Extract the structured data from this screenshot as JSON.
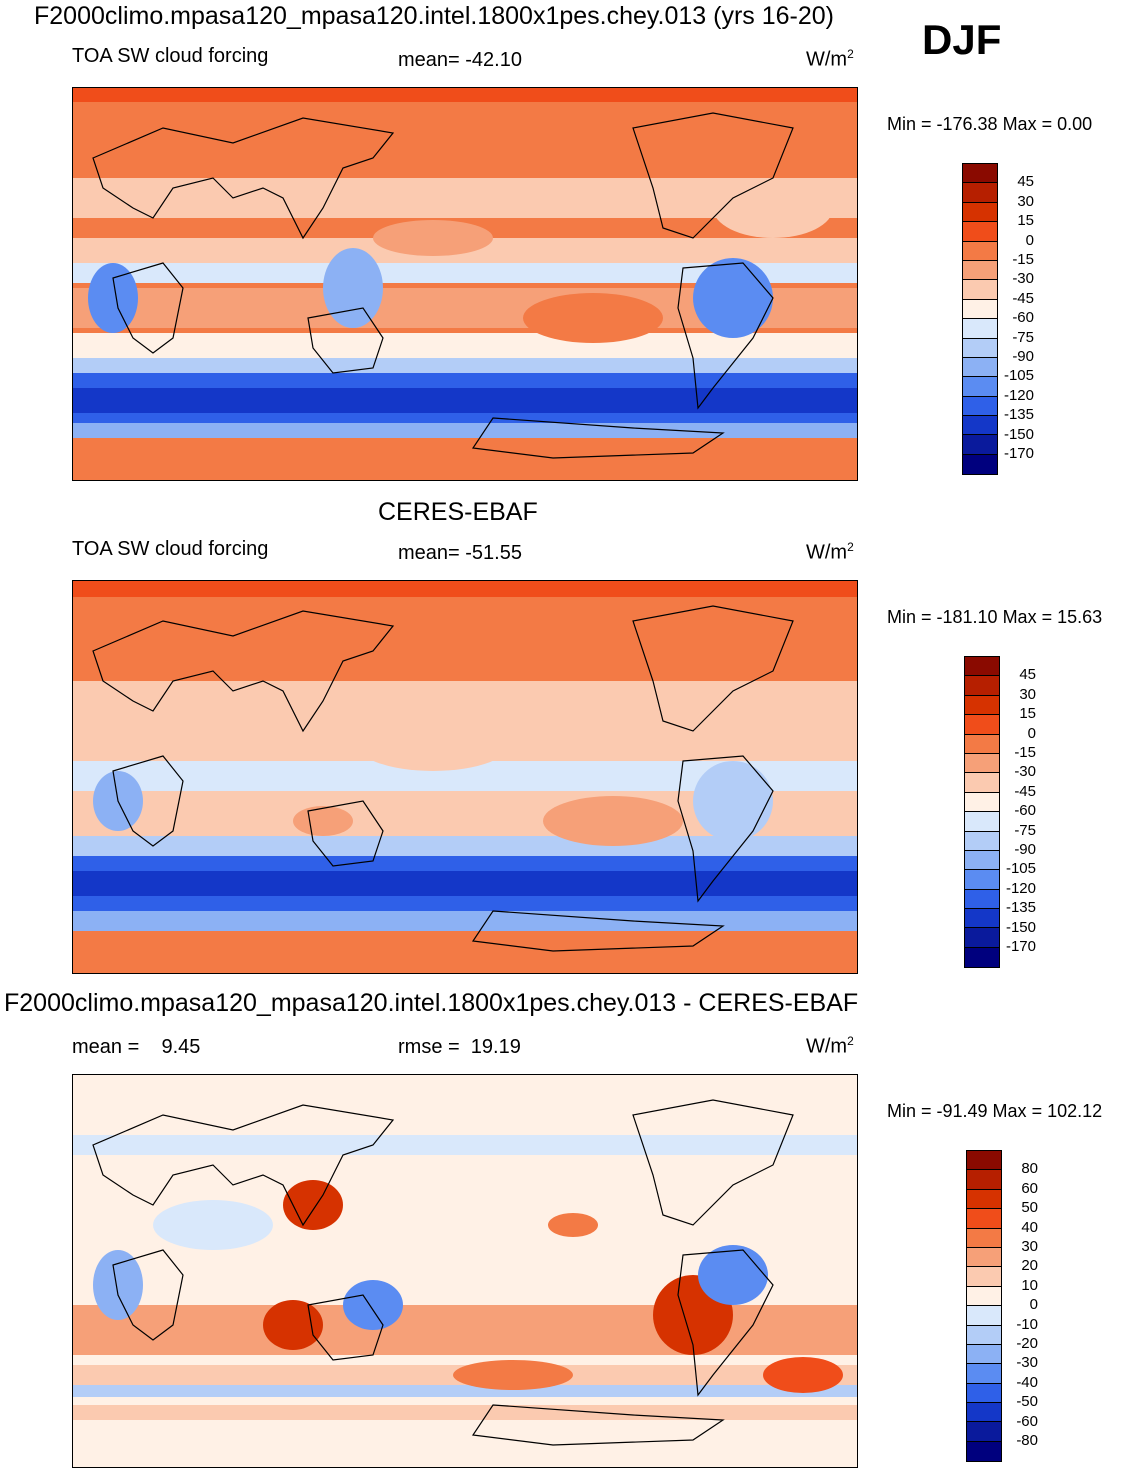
{
  "header": {
    "title": "F2000climo.mpasa120_mpasa120.intel.1800x1pes.chey.013 (yrs 16-20)",
    "season": "DJF"
  },
  "chart_data": [
    {
      "type": "heatmap",
      "name": "model",
      "variable": "TOA SW cloud forcing",
      "stat_text": "mean= -42.10",
      "units": "W/m",
      "units_exp": "2",
      "minmax": "Min = -176.38 Max =   0.00",
      "levels": [
        "45",
        "30",
        "15",
        "0",
        "-15",
        "-30",
        "-45",
        "-60",
        "-75",
        "-90",
        "-105",
        "-120",
        "-135",
        "-150",
        "-170"
      ],
      "colors": [
        "#8a0a00",
        "#b61f00",
        "#d63200",
        "#f04d1a",
        "#f37a45",
        "#f6a078",
        "#fbcab0",
        "#fff1e6",
        "#d9e8fb",
        "#b3cdf7",
        "#8cb1f4",
        "#5b8cf2",
        "#2f60e8",
        "#1437c8",
        "#0a1a9c",
        "#00007e"
      ]
    },
    {
      "type": "heatmap",
      "name": "obs",
      "subtitle": "CERES-EBAF",
      "variable": "TOA SW cloud forcing",
      "stat_text": "mean= -51.55",
      "units": "W/m",
      "units_exp": "2",
      "minmax": "Min = -181.10 Max =  15.63",
      "levels": [
        "45",
        "30",
        "15",
        "0",
        "-15",
        "-30",
        "-45",
        "-60",
        "-75",
        "-90",
        "-105",
        "-120",
        "-135",
        "-150",
        "-170"
      ],
      "colors": [
        "#8a0a00",
        "#b61f00",
        "#d63200",
        "#f04d1a",
        "#f37a45",
        "#f6a078",
        "#fbcab0",
        "#fff1e6",
        "#d9e8fb",
        "#b3cdf7",
        "#8cb1f4",
        "#5b8cf2",
        "#2f60e8",
        "#1437c8",
        "#0a1a9c",
        "#00007e"
      ]
    },
    {
      "type": "heatmap",
      "name": "diff",
      "subtitle": "F2000climo.mpasa120_mpasa120.intel.1800x1pes.chey.013 - CERES-EBAF",
      "stat_left": "mean =    9.45",
      "stat_text": "rmse =  19.19",
      "units": "W/m",
      "units_exp": "2",
      "minmax": "Min = -91.49 Max = 102.12",
      "levels": [
        "80",
        "60",
        "50",
        "40",
        "30",
        "20",
        "10",
        "0",
        "-10",
        "-20",
        "-30",
        "-40",
        "-50",
        "-60",
        "-80"
      ],
      "colors": [
        "#8a0a00",
        "#b61f00",
        "#d63200",
        "#f04d1a",
        "#f37a45",
        "#f6a078",
        "#fbcab0",
        "#fff1e6",
        "#d9e8fb",
        "#b3cdf7",
        "#8cb1f4",
        "#5b8cf2",
        "#2f60e8",
        "#1437c8",
        "#0a1a9c",
        "#00007e"
      ]
    }
  ]
}
